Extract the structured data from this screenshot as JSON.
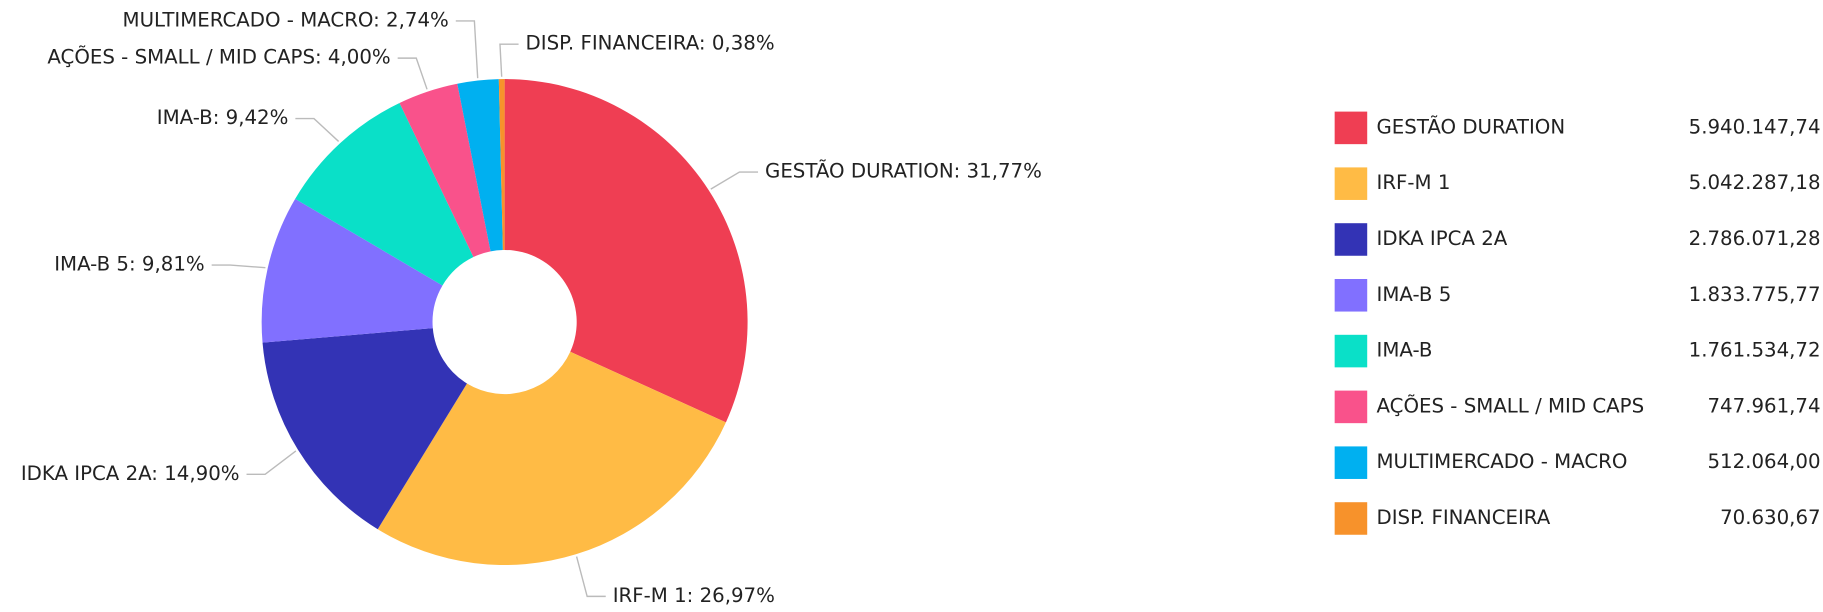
{
  "chart_data": {
    "type": "donut",
    "categories": [
      "GESTÃO DURATION",
      "IRF-M 1",
      "IDKA IPCA 2A",
      "IMA-B 5",
      "IMA-B",
      "AÇÕES - SMALL / MID CAPS",
      "MULTIMERCADO - MACRO",
      "DISP. FINANCEIRA"
    ],
    "values": [
      31.77,
      26.97,
      14.9,
      9.81,
      9.42,
      4.0,
      2.74,
      0.38
    ],
    "value_labels": [
      "GESTÃO DURATION: 31,77%",
      "IRF-M 1: 26,97%",
      "IDKA IPCA 2A: 14,90%",
      "IMA-B 5: 9,81%",
      "IMA-B: 9,42%",
      "AÇÕES - SMALL / MID CAPS: 4,00%",
      "MULTIMERCADO - MACRO: 2,74%",
      "DISP. FINANCEIRA: 0,38%"
    ],
    "amounts": [
      5940147.74,
      5042287.18,
      2786071.28,
      1833775.77,
      1761534.72,
      747961.74,
      512064.0,
      70630.67
    ],
    "amount_labels": [
      "5.940.147,74",
      "5.042.287,18",
      "2.786.071,28",
      "1.833.775,77",
      "1.761.534,72",
      "747.961,74",
      "512.064,00",
      "70.630,67"
    ],
    "colors": [
      "#ef3e53",
      "#ffbb45",
      "#3333b5",
      "#8170ff",
      "#0ae0c8",
      "#f9528b",
      "#00b0f0",
      "#f7922b"
    ],
    "legend": "right"
  }
}
